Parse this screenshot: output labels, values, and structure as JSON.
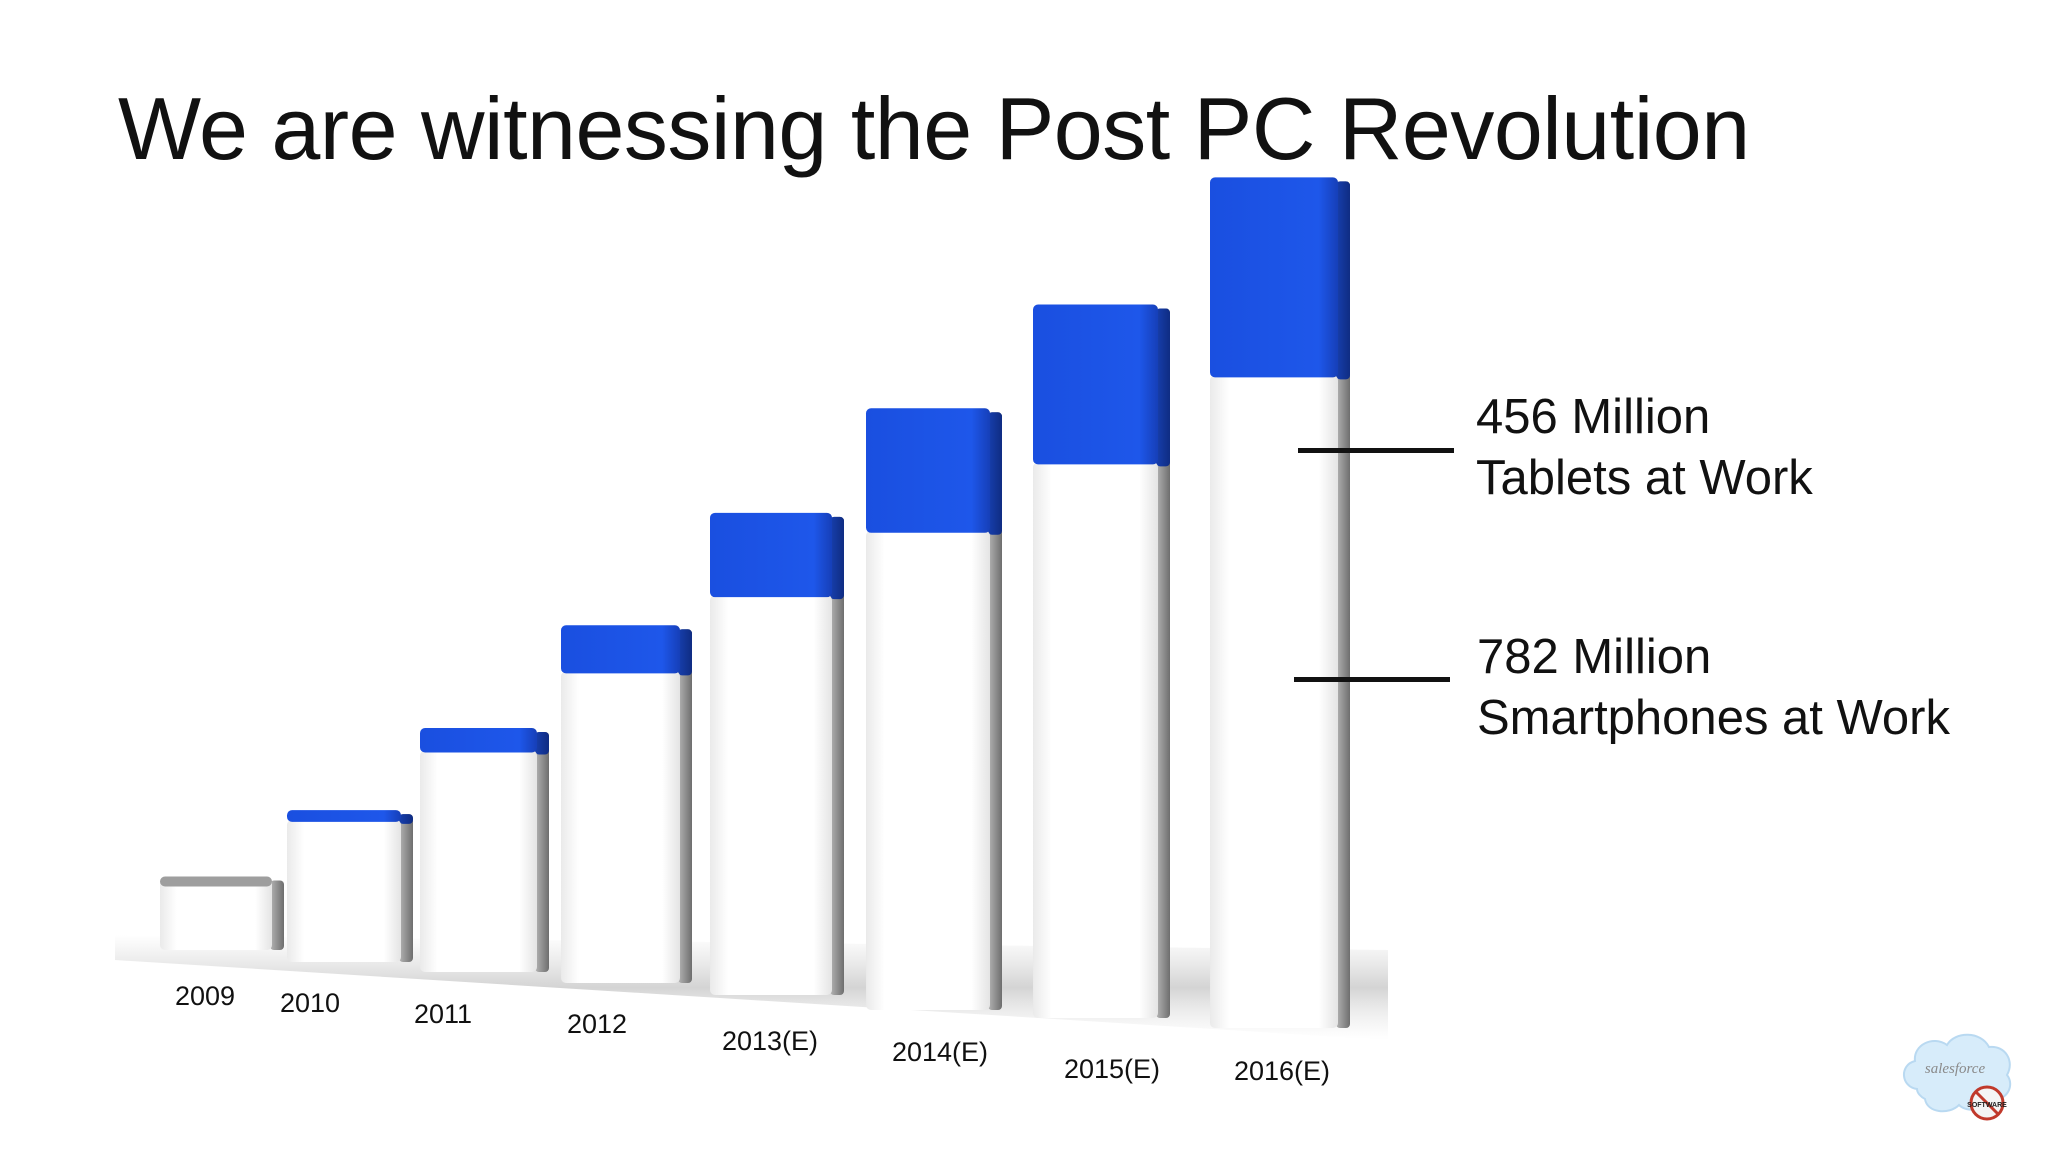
{
  "slide": {
    "title": "We are witnessing the Post PC Revolution"
  },
  "callouts": {
    "tablets_value": "456 Million",
    "tablets_label": "Tablets at Work",
    "smartphones_value": "782 Million",
    "smartphones_label": "Smartphones at Work"
  },
  "logo": {
    "text": "salesforce",
    "badge_text": "SOFTWARE"
  },
  "colors": {
    "tablets": "#1a4fe0",
    "smartphones": "#ffffff",
    "bar_side": "#9a9a9a"
  },
  "chart_data": {
    "type": "bar",
    "stacked": true,
    "categories": [
      "2009",
      "2010",
      "2011",
      "2012",
      "2013(E)",
      "2014(E)",
      "2015(E)",
      "2016(E)"
    ],
    "series": [
      {
        "name": "Smartphones at Work",
        "values": [
          75,
          145,
          226,
          318,
          408,
          489,
          567,
          666
        ]
      },
      {
        "name": "Tablets at Work",
        "values": [
          0,
          10,
          23,
          47,
          84,
          125,
          161,
          202
        ]
      }
    ],
    "annotations": [
      "456 Million Tablets at Work",
      "782 Million Smartphones at Work"
    ]
  }
}
